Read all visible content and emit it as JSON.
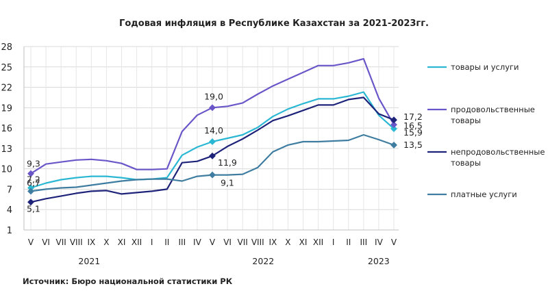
{
  "chart_data": {
    "type": "line",
    "title": "Годовая инфляция в Республике Казахстан за 2021-2023гг.",
    "source": "Источник: Бюро национальной статистики РК",
    "ylim": [
      1,
      28
    ],
    "yticks": [
      "1",
      "4",
      "7",
      "10",
      "13",
      "16",
      "19",
      "22",
      "25",
      "28"
    ],
    "categories": [
      "V",
      "VI",
      "VII",
      "VIII",
      "IX",
      "X",
      "XI",
      "XII",
      "I",
      "II",
      "III",
      "IV",
      "V",
      "VI",
      "VII",
      "VIII",
      "IX",
      "X",
      "XI",
      "XII",
      "I",
      "II",
      "III",
      "IV",
      "V"
    ],
    "years": [
      "2021",
      "2022",
      "2023"
    ],
    "grid": true,
    "legend": "right",
    "series": [
      {
        "name": "товары и услуги",
        "color": "#2ab7d3",
        "values": [
          7.2,
          7.9,
          8.4,
          8.7,
          8.9,
          8.9,
          8.7,
          8.4,
          8.5,
          8.7,
          12.0,
          13.2,
          14.0,
          14.5,
          15.0,
          16.1,
          17.7,
          18.8,
          19.6,
          20.3,
          20.3,
          20.7,
          21.3,
          17.9,
          15.9
        ],
        "labels": [
          {
            "i": 0,
            "text": "7,2"
          },
          {
            "i": 12,
            "text": "14,0"
          },
          {
            "i": 24,
            "text": "15,9"
          }
        ]
      },
      {
        "name": "продовольственные товары",
        "color": "#6a55c9",
        "values": [
          9.3,
          10.7,
          11.0,
          11.3,
          11.4,
          11.2,
          10.8,
          9.9,
          9.9,
          10.0,
          15.5,
          17.9,
          19.0,
          19.2,
          19.7,
          21.0,
          22.2,
          23.2,
          24.2,
          25.2,
          25.2,
          25.6,
          26.2,
          20.4,
          16.5
        ],
        "labels": [
          {
            "i": 0,
            "text": "9,3"
          },
          {
            "i": 12,
            "text": "19,0"
          },
          {
            "i": 24,
            "text": "16,5"
          }
        ]
      },
      {
        "name": "непродовольственные товары",
        "color": "#1e237a",
        "values": [
          5.1,
          5.6,
          6.0,
          6.4,
          6.7,
          6.8,
          6.3,
          6.5,
          6.7,
          7.0,
          10.9,
          11.1,
          11.9,
          13.3,
          14.4,
          15.7,
          17.1,
          17.8,
          18.6,
          19.4,
          19.4,
          20.2,
          20.5,
          18.1,
          17.2
        ],
        "labels": [
          {
            "i": 0,
            "text": "5,1"
          },
          {
            "i": 12,
            "text": "11,9"
          },
          {
            "i": 24,
            "text": "17,2"
          }
        ]
      },
      {
        "name": "платные услуги",
        "color": "#3f7da0",
        "values": [
          6.7,
          7.0,
          7.2,
          7.3,
          7.6,
          7.9,
          8.2,
          8.4,
          8.5,
          8.5,
          8.2,
          8.9,
          9.1,
          9.1,
          9.2,
          10.2,
          12.5,
          13.5,
          14.0,
          14.0,
          14.1,
          14.2,
          15.0,
          14.3,
          13.5
        ],
        "labels": [
          {
            "i": 0,
            "text": "6,7"
          },
          {
            "i": 12,
            "text": "9,1"
          },
          {
            "i": 24,
            "text": "13,5"
          }
        ]
      }
    ]
  }
}
